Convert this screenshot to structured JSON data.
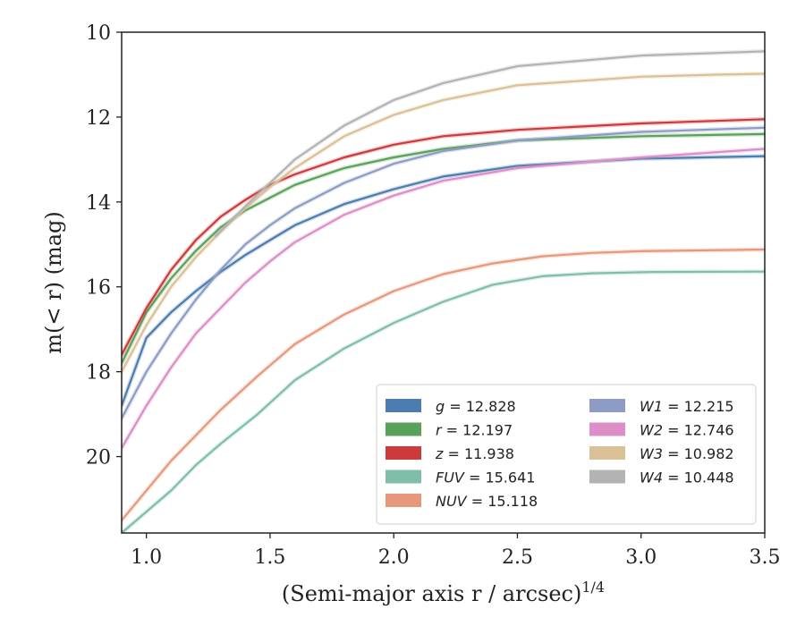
{
  "chart_data": {
    "type": "line",
    "title": "",
    "xlabel": "(Semi-major axis r / arcsec)",
    "xlabel_sup": "1/4",
    "ylabel": "m(< r) (mag)",
    "xlim": [
      0.9,
      3.5
    ],
    "ylim": [
      21.8,
      10.0
    ],
    "y_inverted": true,
    "x_ticks": [
      1.0,
      1.5,
      2.0,
      2.5,
      3.0,
      3.5
    ],
    "x_tick_labels": [
      "1.0",
      "1.5",
      "2.0",
      "2.5",
      "3.0",
      "3.5"
    ],
    "y_ticks": [
      10,
      12,
      14,
      16,
      18,
      20
    ],
    "y_tick_labels": [
      "10",
      "12",
      "14",
      "16",
      "18",
      "20"
    ],
    "grid": false,
    "legend_position": "lower-right",
    "series": [
      {
        "name": "g",
        "legend_label": "g = 12.828",
        "legend_var": "g",
        "legend_value": "12.828",
        "color": "#4c7db0",
        "x": [
          0.9,
          1.0,
          1.1,
          1.2,
          1.3,
          1.4,
          1.5,
          1.6,
          1.8,
          2.0,
          2.2,
          2.5,
          3.0,
          3.5
        ],
        "y": [
          18.8,
          17.2,
          16.6,
          16.1,
          15.65,
          15.25,
          14.9,
          14.55,
          14.05,
          13.7,
          13.4,
          13.15,
          12.98,
          12.92
        ]
      },
      {
        "name": "r",
        "legend_label": "r = 12.197",
        "legend_var": "r",
        "legend_value": "12.197",
        "color": "#5aa25a",
        "x": [
          0.9,
          1.0,
          1.1,
          1.2,
          1.3,
          1.4,
          1.5,
          1.6,
          1.8,
          2.0,
          2.2,
          2.5,
          3.0,
          3.5
        ],
        "y": [
          17.8,
          16.6,
          15.8,
          15.15,
          14.6,
          14.2,
          13.9,
          13.6,
          13.2,
          12.95,
          12.75,
          12.55,
          12.45,
          12.4
        ]
      },
      {
        "name": "z",
        "legend_label": "z = 11.938",
        "legend_var": "z",
        "legend_value": "11.938",
        "color": "#cc3b3b",
        "x": [
          0.9,
          1.0,
          1.1,
          1.2,
          1.3,
          1.4,
          1.5,
          1.6,
          1.8,
          2.0,
          2.2,
          2.5,
          3.0,
          3.5
        ],
        "y": [
          17.6,
          16.5,
          15.6,
          14.9,
          14.35,
          13.95,
          13.6,
          13.35,
          12.95,
          12.65,
          12.45,
          12.3,
          12.15,
          12.05
        ]
      },
      {
        "name": "FUV",
        "legend_label": "FUV = 15.641",
        "legend_var": "FUV",
        "legend_value": "15.641",
        "color": "#7fbfaa",
        "x": [
          0.9,
          1.1,
          1.2,
          1.3,
          1.45,
          1.6,
          1.8,
          2.0,
          2.2,
          2.4,
          2.6,
          2.8,
          3.05,
          3.5
        ],
        "y": [
          21.8,
          20.8,
          20.2,
          19.7,
          19.0,
          18.2,
          17.45,
          16.85,
          16.35,
          15.95,
          15.75,
          15.68,
          15.65,
          15.64
        ]
      },
      {
        "name": "NUV",
        "legend_label": "NUV = 15.118",
        "legend_var": "NUV",
        "legend_value": "15.118",
        "color": "#e8987a",
        "x": [
          0.9,
          1.1,
          1.3,
          1.45,
          1.6,
          1.8,
          2.0,
          2.2,
          2.4,
          2.6,
          2.8,
          3.0,
          3.5
        ],
        "y": [
          21.5,
          20.1,
          18.9,
          18.1,
          17.35,
          16.65,
          16.1,
          15.7,
          15.45,
          15.28,
          15.2,
          15.16,
          15.12
        ]
      },
      {
        "name": "W1",
        "legend_label": "W1 = 12.215",
        "legend_var": "W1",
        "legend_value": "12.215",
        "color": "#8c9cc4",
        "x": [
          0.9,
          1.0,
          1.1,
          1.2,
          1.3,
          1.4,
          1.5,
          1.6,
          1.8,
          2.0,
          2.2,
          2.5,
          3.0,
          3.5
        ],
        "y": [
          19.1,
          18.0,
          17.1,
          16.3,
          15.6,
          15.0,
          14.55,
          14.15,
          13.55,
          13.1,
          12.8,
          12.55,
          12.35,
          12.25
        ]
      },
      {
        "name": "W2",
        "legend_label": "W2 = 12.746",
        "legend_var": "W2",
        "legend_value": "12.746",
        "color": "#dd8ec7",
        "x": [
          0.9,
          1.0,
          1.1,
          1.2,
          1.3,
          1.4,
          1.5,
          1.6,
          1.8,
          2.0,
          2.2,
          2.5,
          3.0,
          3.5
        ],
        "y": [
          19.8,
          18.8,
          17.9,
          17.1,
          16.5,
          15.9,
          15.4,
          14.95,
          14.3,
          13.85,
          13.5,
          13.2,
          12.95,
          12.75
        ]
      },
      {
        "name": "W3",
        "legend_label": "W3 = 10.982",
        "legend_var": "W3",
        "legend_value": "10.982",
        "color": "#dcc095",
        "x": [
          0.9,
          1.0,
          1.1,
          1.2,
          1.3,
          1.4,
          1.5,
          1.6,
          1.8,
          2.0,
          2.2,
          2.5,
          3.0,
          3.3,
          3.5
        ],
        "y": [
          18.0,
          16.9,
          16.0,
          15.3,
          14.7,
          14.15,
          13.65,
          13.2,
          12.45,
          11.95,
          11.6,
          11.25,
          11.05,
          11.0,
          10.98
        ]
      },
      {
        "name": "W4",
        "legend_label": "W4 = 10.448",
        "legend_var": "W4",
        "legend_value": "10.448",
        "color": "#b3b3b3",
        "x": [
          1.28,
          1.4,
          1.5,
          1.6,
          1.8,
          2.0,
          2.2,
          2.5,
          3.0,
          3.5
        ],
        "y": [
          14.8,
          14.1,
          13.55,
          13.0,
          12.2,
          11.6,
          11.2,
          10.8,
          10.55,
          10.45
        ]
      }
    ]
  }
}
